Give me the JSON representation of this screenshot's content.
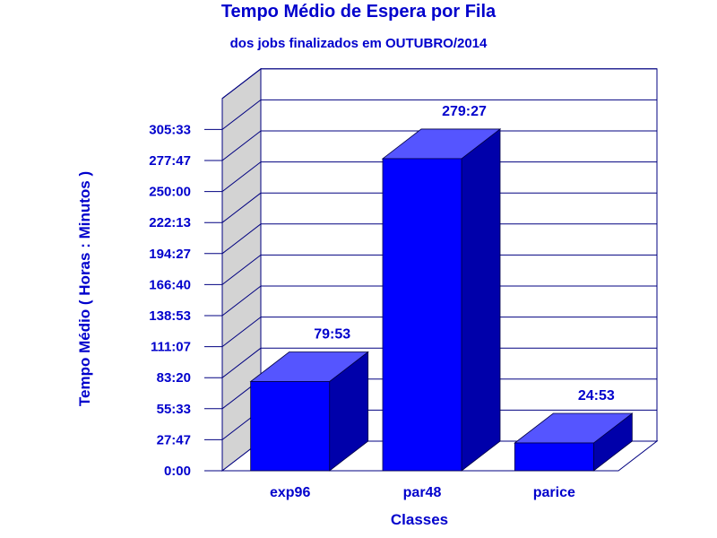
{
  "chart_data": {
    "type": "bar",
    "title": "Tempo Médio de Espera por Fila",
    "subtitle": "dos jobs finalizados em OUTUBRO/2014",
    "xlabel": "Classes",
    "ylabel": "Tempo Médio ( Horas : Minutos )",
    "categories": [
      "exp96",
      "par48",
      "parice"
    ],
    "values_minutes": [
      4793,
      16767,
      1493
    ],
    "value_labels": [
      "79:53",
      "279:27",
      "24:53"
    ],
    "y_ticks": [
      "0:00",
      "27:47",
      "55:33",
      "83:20",
      "111:07",
      "138:53",
      "166:40",
      "194:27",
      "222:13",
      "250:00",
      "277:47",
      "305:33"
    ],
    "y_tick_step_minutes": 1666.67,
    "ylim_minutes": [
      0,
      18333
    ],
    "grid": true,
    "style": "3d",
    "colors": {
      "text": "#0000cc",
      "bar_front": "#0000ff",
      "bar_top": "#5555ff",
      "bar_side": "#0000aa",
      "wall": "#d3d3d3",
      "grid": "#000080"
    }
  }
}
